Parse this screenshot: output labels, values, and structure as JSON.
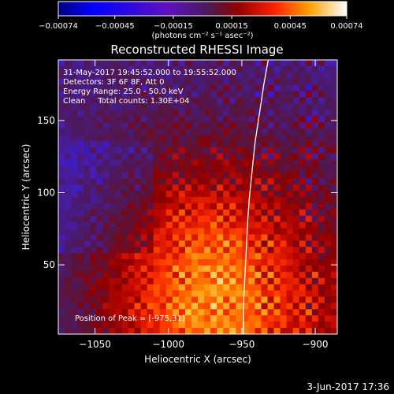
{
  "chart_data": {
    "type": "heatmap",
    "title": "Reconstructed RHESSI Image",
    "xlabel": "Heliocentric X (arcsec)",
    "ylabel": "Heliocentric Y (arcsec)",
    "xlim": [
      -1075,
      -885
    ],
    "ylim": [
      2,
      192
    ],
    "x_ticks": [
      -1050,
      -1000,
      -950,
      -900
    ],
    "x_tick_labels": [
      "−1050",
      "−1000",
      "−950",
      "−900"
    ],
    "y_ticks": [
      50,
      100,
      150
    ],
    "y_tick_labels": [
      "50",
      "100",
      "150"
    ],
    "colorbar": {
      "min": -0.00074,
      "max": 0.00074,
      "ticks": [
        -0.00074,
        -0.00045,
        -0.00015,
        0.00015,
        0.00045,
        0.00074
      ],
      "tick_labels": [
        "−0.00074",
        "−0.00045",
        "−0.00015",
        "0.00015",
        "0.00045",
        "0.00074"
      ],
      "units": "(photons cm⁻² s⁻¹ asec⁻²)"
    },
    "annotations": [
      "31-May-2017 19:45:52.000 to 19:55:52.000",
      "Detectors: 3F 6F 8F, Att 0",
      "Energy Range: 25.0 - 50.0 keV",
      "Clean     Total counts: 1.30E+04"
    ],
    "peak_label": "Position of Peak = [-975,31]",
    "peak_position": [
      -975,
      31
    ],
    "limb_curve": [
      [
        -932,
        192
      ],
      [
        -935,
        175
      ],
      [
        -938,
        155
      ],
      [
        -941,
        135
      ],
      [
        -943,
        115
      ],
      [
        -945,
        95
      ],
      [
        -946,
        80
      ],
      [
        -947,
        60
      ],
      [
        -948,
        40
      ],
      [
        -949,
        20
      ],
      [
        -949,
        2
      ]
    ],
    "colors": {
      "background": "#000000",
      "text": "#ffffff",
      "limb": "#ffffff"
    }
  },
  "footer": {
    "date": "3-Jun-2017 17:36"
  }
}
